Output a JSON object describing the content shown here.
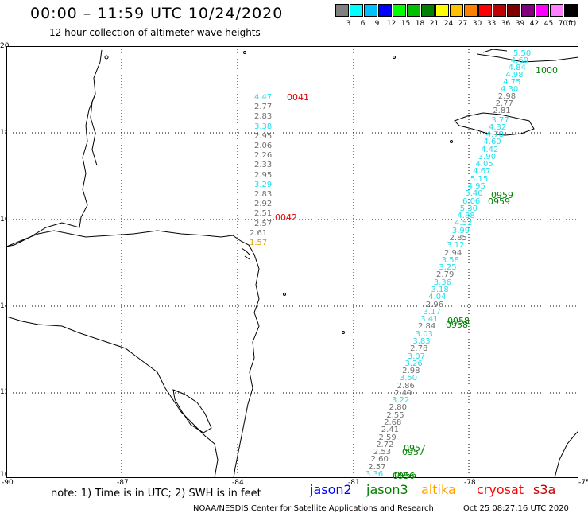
{
  "header": {
    "title": "00:00 – 11:59 UTC 10/24/2020",
    "subtitle": "12 hour collection of altimeter wave heights"
  },
  "legend": {
    "labels": [
      "3",
      "6",
      "9",
      "12",
      "15",
      "18",
      "21",
      "24",
      "27",
      "30",
      "33",
      "36",
      "39",
      "42",
      "45",
      "70",
      "(ft)"
    ],
    "colors": [
      "#808080",
      "#00ffff",
      "#00bfff",
      "#0000ff",
      "#00ff00",
      "#00c000",
      "#008000",
      "#ffff00",
      "#ffc000",
      "#ff8000",
      "#ff0000",
      "#c00000",
      "#800000",
      "#800080",
      "#ff00ff",
      "#ff80ff",
      "#000000"
    ]
  },
  "axes": {
    "y_ticks": [
      "20",
      "18",
      "16",
      "14",
      "12",
      "10"
    ],
    "x_ticks": [
      "-90",
      "-87",
      "-84",
      "-81",
      "-78",
      "-75"
    ]
  },
  "track_colors": {
    "gray": "#707070",
    "cyan": "#1ee0ee",
    "orange": "#e0a000",
    "red": "#e00000",
    "green": "#008000"
  },
  "time_labels": [
    {
      "text": "0041",
      "color": "red"
    },
    {
      "text": "0042",
      "color": "red"
    },
    {
      "text": "1000",
      "color": "green"
    },
    {
      "text": "0959",
      "color": "green"
    },
    {
      "text": "0959",
      "color": "green"
    },
    {
      "text": "0958",
      "color": "green"
    },
    {
      "text": "0958",
      "color": "green"
    },
    {
      "text": "0957",
      "color": "green"
    },
    {
      "text": "0957",
      "color": "green"
    },
    {
      "text": "0956",
      "color": "green"
    },
    {
      "text": "0956",
      "color": "green"
    }
  ],
  "track1_values": [
    {
      "v": "4.47",
      "c": "cyan"
    },
    {
      "v": "2.77",
      "c": "gray"
    },
    {
      "v": "2.83",
      "c": "gray"
    },
    {
      "v": "3.38",
      "c": "cyan"
    },
    {
      "v": "2.95",
      "c": "gray"
    },
    {
      "v": "2.06",
      "c": "gray"
    },
    {
      "v": "2.26",
      "c": "gray"
    },
    {
      "v": "2.33",
      "c": "gray"
    },
    {
      "v": "2.95",
      "c": "gray"
    },
    {
      "v": "3.29",
      "c": "cyan"
    },
    {
      "v": "2.83",
      "c": "gray"
    },
    {
      "v": "2.92",
      "c": "gray"
    },
    {
      "v": "2.51",
      "c": "gray"
    },
    {
      "v": "2.57",
      "c": "gray"
    },
    {
      "v": "2.61",
      "c": "gray"
    },
    {
      "v": "1.57",
      "c": "orange"
    }
  ],
  "track2_values": [
    {
      "v": "5.50",
      "c": "cyan"
    },
    {
      "v": "4.69",
      "c": "cyan"
    },
    {
      "v": "4.84",
      "c": "cyan"
    },
    {
      "v": "4.98",
      "c": "cyan"
    },
    {
      "v": "4.75",
      "c": "cyan"
    },
    {
      "v": "4.30",
      "c": "cyan"
    },
    {
      "v": "2.98",
      "c": "gray"
    },
    {
      "v": "2.77",
      "c": "gray"
    },
    {
      "v": "2.81",
      "c": "gray"
    },
    {
      "v": "3.77",
      "c": "cyan"
    },
    {
      "v": "4.32",
      "c": "cyan"
    },
    {
      "v": "4.78",
      "c": "cyan"
    },
    {
      "v": "4.60",
      "c": "cyan"
    },
    {
      "v": "4.42",
      "c": "cyan"
    },
    {
      "v": "3.90",
      "c": "cyan"
    },
    {
      "v": "4.05",
      "c": "cyan"
    },
    {
      "v": "4.67",
      "c": "cyan"
    },
    {
      "v": "5.15",
      "c": "cyan"
    },
    {
      "v": "4.95",
      "c": "cyan"
    },
    {
      "v": "5.40",
      "c": "cyan"
    },
    {
      "v": "6.06",
      "c": "cyan"
    },
    {
      "v": "5.30",
      "c": "cyan"
    },
    {
      "v": "4.88",
      "c": "cyan"
    },
    {
      "v": "4.52",
      "c": "cyan"
    },
    {
      "v": "3.99",
      "c": "cyan"
    },
    {
      "v": "2.85",
      "c": "gray"
    },
    {
      "v": "3.12",
      "c": "cyan"
    },
    {
      "v": "2.94",
      "c": "gray"
    },
    {
      "v": "3.58",
      "c": "cyan"
    },
    {
      "v": "3.25",
      "c": "cyan"
    },
    {
      "v": "2.79",
      "c": "gray"
    },
    {
      "v": "3.36",
      "c": "cyan"
    },
    {
      "v": "3.18",
      "c": "cyan"
    },
    {
      "v": "4.04",
      "c": "cyan"
    },
    {
      "v": "2.96",
      "c": "gray"
    },
    {
      "v": "3.17",
      "c": "cyan"
    },
    {
      "v": "3.41",
      "c": "cyan"
    },
    {
      "v": "2.84",
      "c": "gray"
    },
    {
      "v": "3.03",
      "c": "cyan"
    },
    {
      "v": "3.83",
      "c": "cyan"
    },
    {
      "v": "2.78",
      "c": "gray"
    },
    {
      "v": "3.07",
      "c": "cyan"
    },
    {
      "v": "3.26",
      "c": "cyan"
    },
    {
      "v": "2.98",
      "c": "gray"
    },
    {
      "v": "3.50",
      "c": "cyan"
    },
    {
      "v": "2.86",
      "c": "gray"
    },
    {
      "v": "2.49",
      "c": "gray"
    },
    {
      "v": "3.22",
      "c": "cyan"
    },
    {
      "v": "2.80",
      "c": "gray"
    },
    {
      "v": "2.55",
      "c": "gray"
    },
    {
      "v": "2.68",
      "c": "gray"
    },
    {
      "v": "2.41",
      "c": "gray"
    },
    {
      "v": "2.59",
      "c": "gray"
    },
    {
      "v": "2.72",
      "c": "gray"
    },
    {
      "v": "2.53",
      "c": "gray"
    },
    {
      "v": "2.60",
      "c": "gray"
    },
    {
      "v": "2.57",
      "c": "gray"
    },
    {
      "v": "3.36",
      "c": "cyan"
    }
  ],
  "footer": {
    "note": "note: 1) Time is in UTC; 2) SWH is in feet",
    "satellites": [
      {
        "name": "jason2",
        "color": "#0000ff"
      },
      {
        "name": "jason3",
        "color": "#008000"
      },
      {
        "name": "altika",
        "color": "#ffa000"
      },
      {
        "name": "cryosat",
        "color": "#ff0000"
      },
      {
        "name": "s3a",
        "color": "#c00000"
      }
    ],
    "credit": "NOAA/NESDIS Center for Satellite Applications and Research",
    "timestamp": "Oct 25 08:27:16 UTC 2020"
  }
}
